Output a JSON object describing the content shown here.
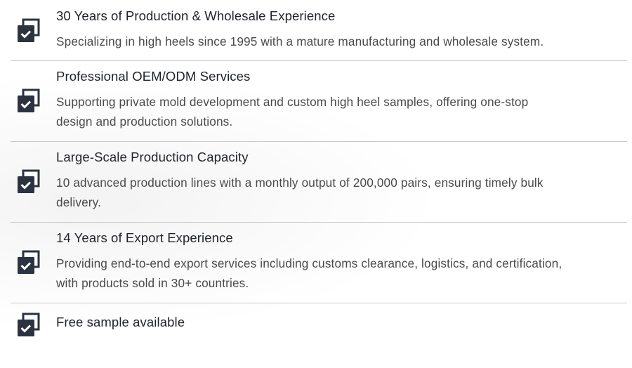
{
  "accent_color": "#2b3240",
  "items": [
    {
      "icon": "checked-copy-icon",
      "title": "30 Years of Production & Wholesale Experience",
      "lines": [
        "Specializing in high heels since 1995 with a mature manufacturing and wholesale system."
      ]
    },
    {
      "icon": "checked-copy-icon",
      "title": "Professional OEM/ODM Services",
      "lines": [
        "Supporting private mold development and custom high heel samples, offering one-stop",
        "design and production solutions."
      ]
    },
    {
      "icon": "checked-copy-icon",
      "title": "Large-Scale Production Capacity",
      "lines": [
        "10 advanced production lines with a monthly output of 200,000 pairs, ensuring timely bulk",
        "delivery."
      ]
    },
    {
      "icon": "checked-copy-icon",
      "title": "14 Years of Export Experience",
      "lines": [
        "Providing end-to-end export services including customs clearance, logistics, and certification,",
        "with products sold in 30+ countries."
      ]
    },
    {
      "icon": "checked-copy-icon",
      "title": "Free sample available",
      "lines": []
    }
  ]
}
